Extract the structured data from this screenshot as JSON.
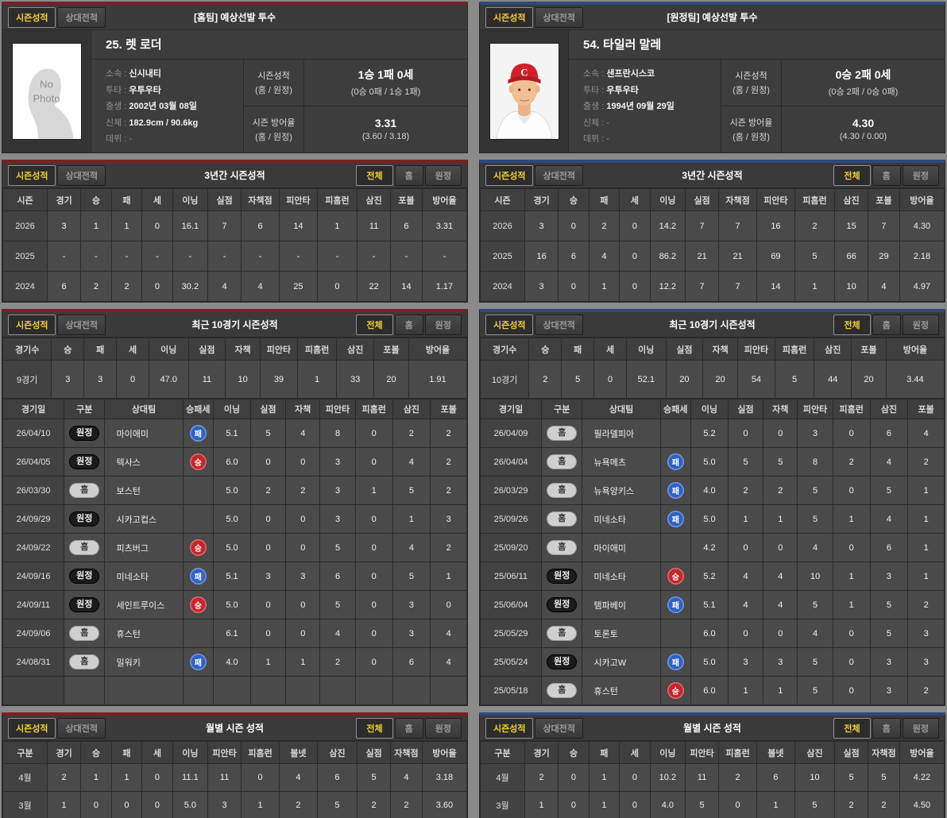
{
  "colors": {
    "home_accent": "#7d1f1f",
    "away_accent": "#2c4b7d",
    "active_tab_text": "#f3d031",
    "win_badge": "#c8252c",
    "loss_badge": "#2f62c9",
    "home_badge_bg": "#cfcfcf",
    "away_badge_bg": "#1b1b1b"
  },
  "shared": {
    "tabs": {
      "season": "시즌성적",
      "matchup": "상대전적"
    },
    "filters": {
      "all": "전체",
      "home": "홈",
      "away": "원정"
    },
    "separator": " : "
  },
  "panels": [
    {
      "side": "home",
      "header": {
        "title": "[홈팀] 예상선발 투수",
        "player_name": "25. 렛 로더",
        "photo": "silhouette",
        "photo_placeholder": "No\nPhoto",
        "info": [
          {
            "label": "소속",
            "value": "신시내티",
            "dim": false
          },
          {
            "label": "투타",
            "value": "우투우타",
            "dim": false
          },
          {
            "label": "출생",
            "value": "2002년 03월 08일",
            "dim": false
          },
          {
            "label": "신체",
            "value": "182.9cm / 90.6kg",
            "dim": false
          },
          {
            "label": "데뷔",
            "value": "-",
            "dim": true
          }
        ],
        "stats": [
          {
            "label": "시즌성적",
            "sublabel": "(홈 / 원정)",
            "value": "1승 1패 0세",
            "subvalue": "(0승 0패 / 1승 1패)"
          },
          {
            "label": "시즌 방어율",
            "sublabel": "(홈 / 원정)",
            "value": "3.31",
            "subvalue": "(3.60 / 3.18)"
          }
        ]
      },
      "three_year": {
        "title": "3년간 시즌성적",
        "columns": [
          "시즌",
          "경기",
          "승",
          "패",
          "세",
          "이닝",
          "실점",
          "자책점",
          "피안타",
          "피홈런",
          "삼진",
          "포볼",
          "방어율"
        ],
        "rows": [
          [
            "2026",
            "3",
            "1",
            "1",
            "0",
            "16.1",
            "7",
            "6",
            "14",
            "1",
            "11",
            "6",
            "3.31"
          ],
          [
            "2025",
            "-",
            "-",
            "-",
            "-",
            "-",
            "-",
            "-",
            "-",
            "-",
            "-",
            "-",
            "-"
          ],
          [
            "2024",
            "6",
            "2",
            "2",
            "0",
            "30.2",
            "4",
            "4",
            "25",
            "0",
            "22",
            "14",
            "1.17"
          ]
        ]
      },
      "recent": {
        "title": "최근 10경기 시즌성적",
        "summary_columns": [
          "경기수",
          "승",
          "패",
          "세",
          "이닝",
          "실점",
          "자책",
          "피안타",
          "피홈런",
          "삼진",
          "포볼",
          "방어율"
        ],
        "summary_row": [
          "9경기",
          "3",
          "3",
          "0",
          "47.0",
          "11",
          "10",
          "39",
          "1",
          "33",
          "20",
          "1.91"
        ],
        "game_columns": [
          "경기일",
          "구분",
          "상대팀",
          "승패세",
          "이닝",
          "실점",
          "자책",
          "피안타",
          "피홈런",
          "삼진",
          "포볼"
        ],
        "games": [
          {
            "date": "26/04/10",
            "loc": "원정",
            "opp": "마이애미",
            "result": "패",
            "stats": [
              "5.1",
              "5",
              "4",
              "8",
              "0",
              "2",
              "2"
            ]
          },
          {
            "date": "26/04/05",
            "loc": "원정",
            "opp": "텍사스",
            "result": "승",
            "stats": [
              "6.0",
              "0",
              "0",
              "3",
              "0",
              "4",
              "2"
            ]
          },
          {
            "date": "26/03/30",
            "loc": "홈",
            "opp": "보스턴",
            "result": "",
            "stats": [
              "5.0",
              "2",
              "2",
              "3",
              "1",
              "5",
              "2"
            ]
          },
          {
            "date": "24/09/29",
            "loc": "원정",
            "opp": "시카고컵스",
            "result": "",
            "stats": [
              "5.0",
              "0",
              "0",
              "3",
              "0",
              "1",
              "3"
            ]
          },
          {
            "date": "24/09/22",
            "loc": "홈",
            "opp": "피츠버그",
            "result": "승",
            "stats": [
              "5.0",
              "0",
              "0",
              "5",
              "0",
              "4",
              "2"
            ]
          },
          {
            "date": "24/09/16",
            "loc": "원정",
            "opp": "미네소타",
            "result": "패",
            "stats": [
              "5.1",
              "3",
              "3",
              "6",
              "0",
              "5",
              "1"
            ]
          },
          {
            "date": "24/09/11",
            "loc": "원정",
            "opp": "세인트루이스",
            "result": "승",
            "stats": [
              "5.0",
              "0",
              "0",
              "5",
              "0",
              "3",
              "0"
            ]
          },
          {
            "date": "24/09/06",
            "loc": "홈",
            "opp": "휴스턴",
            "result": "",
            "stats": [
              "6.1",
              "0",
              "0",
              "4",
              "0",
              "3",
              "4"
            ]
          },
          {
            "date": "24/08/31",
            "loc": "홈",
            "opp": "밀워키",
            "result": "패",
            "stats": [
              "4.0",
              "1",
              "1",
              "2",
              "0",
              "6",
              "4"
            ]
          },
          {
            "date": "",
            "loc": "",
            "opp": "",
            "result": "",
            "stats": [
              "",
              "",
              "",
              "",
              "",
              "",
              ""
            ]
          }
        ]
      },
      "monthly": {
        "title": "월별 시즌 성적",
        "columns": [
          "구분",
          "경기",
          "승",
          "패",
          "세",
          "이닝",
          "피안타",
          "피홈런",
          "볼넷",
          "삼진",
          "실점",
          "자책점",
          "방어율"
        ],
        "rows": [
          [
            "4월",
            "2",
            "1",
            "1",
            "0",
            "11.1",
            "11",
            "0",
            "4",
            "6",
            "5",
            "4",
            "3.18"
          ],
          [
            "3월",
            "1",
            "0",
            "0",
            "0",
            "5.0",
            "3",
            "1",
            "2",
            "5",
            "2",
            "2",
            "3.60"
          ]
        ]
      }
    },
    {
      "side": "away",
      "header": {
        "title": "[원정팀] 예상선발 투수",
        "player_name": "54. 타일러 말레",
        "photo": "portrait",
        "photo_placeholder": "",
        "info": [
          {
            "label": "소속",
            "value": "샌프란시스코",
            "dim": false
          },
          {
            "label": "투타",
            "value": "우투우타",
            "dim": false
          },
          {
            "label": "출생",
            "value": "1994년 09월 29일",
            "dim": false
          },
          {
            "label": "신체",
            "value": "-",
            "dim": true
          },
          {
            "label": "데뷔",
            "value": "-",
            "dim": true
          }
        ],
        "stats": [
          {
            "label": "시즌성적",
            "sublabel": "(홈 / 원정)",
            "value": "0승 2패 0세",
            "subvalue": "(0승 2패 / 0승 0패)"
          },
          {
            "label": "시즌 방어율",
            "sublabel": "(홈 / 원정)",
            "value": "4.30",
            "subvalue": "(4.30 / 0.00)"
          }
        ]
      },
      "three_year": {
        "title": "3년간 시즌성적",
        "columns": [
          "시즌",
          "경기",
          "승",
          "패",
          "세",
          "이닝",
          "실점",
          "자책점",
          "피안타",
          "피홈런",
          "삼진",
          "포볼",
          "방어율"
        ],
        "rows": [
          [
            "2026",
            "3",
            "0",
            "2",
            "0",
            "14.2",
            "7",
            "7",
            "16",
            "2",
            "15",
            "7",
            "4.30"
          ],
          [
            "2025",
            "16",
            "6",
            "4",
            "0",
            "86.2",
            "21",
            "21",
            "69",
            "5",
            "66",
            "29",
            "2.18"
          ],
          [
            "2024",
            "3",
            "0",
            "1",
            "0",
            "12.2",
            "7",
            "7",
            "14",
            "1",
            "10",
            "4",
            "4.97"
          ]
        ]
      },
      "recent": {
        "title": "최근 10경기 시즌성적",
        "summary_columns": [
          "경기수",
          "승",
          "패",
          "세",
          "이닝",
          "실점",
          "자책",
          "피안타",
          "피홈런",
          "삼진",
          "포볼",
          "방어율"
        ],
        "summary_row": [
          "10경기",
          "2",
          "5",
          "0",
          "52.1",
          "20",
          "20",
          "54",
          "5",
          "44",
          "20",
          "3.44"
        ],
        "game_columns": [
          "경기일",
          "구분",
          "상대팀",
          "승패세",
          "이닝",
          "실점",
          "자책",
          "피안타",
          "피홈런",
          "삼진",
          "포볼"
        ],
        "games": [
          {
            "date": "26/04/09",
            "loc": "홈",
            "opp": "필라델피아",
            "result": "",
            "stats": [
              "5.2",
              "0",
              "0",
              "3",
              "0",
              "6",
              "4"
            ]
          },
          {
            "date": "26/04/04",
            "loc": "홈",
            "opp": "뉴욕메츠",
            "result": "패",
            "stats": [
              "5.0",
              "5",
              "5",
              "8",
              "2",
              "4",
              "2"
            ]
          },
          {
            "date": "26/03/29",
            "loc": "홈",
            "opp": "뉴욕양키스",
            "result": "패",
            "stats": [
              "4.0",
              "2",
              "2",
              "5",
              "0",
              "5",
              "1"
            ]
          },
          {
            "date": "25/09/26",
            "loc": "홈",
            "opp": "미네소타",
            "result": "패",
            "stats": [
              "5.0",
              "1",
              "1",
              "5",
              "1",
              "4",
              "1"
            ]
          },
          {
            "date": "25/09/20",
            "loc": "홈",
            "opp": "마이애미",
            "result": "",
            "stats": [
              "4.2",
              "0",
              "0",
              "4",
              "0",
              "6",
              "1"
            ]
          },
          {
            "date": "25/06/11",
            "loc": "원정",
            "opp": "미네소타",
            "result": "승",
            "stats": [
              "5.2",
              "4",
              "4",
              "10",
              "1",
              "3",
              "1"
            ]
          },
          {
            "date": "25/06/04",
            "loc": "원정",
            "opp": "탬파베이",
            "result": "패",
            "stats": [
              "5.1",
              "4",
              "4",
              "5",
              "1",
              "5",
              "2"
            ]
          },
          {
            "date": "25/05/29",
            "loc": "홈",
            "opp": "토론토",
            "result": "",
            "stats": [
              "6.0",
              "0",
              "0",
              "4",
              "0",
              "5",
              "3"
            ]
          },
          {
            "date": "25/05/24",
            "loc": "원정",
            "opp": "시카고W",
            "result": "패",
            "stats": [
              "5.0",
              "3",
              "3",
              "5",
              "0",
              "3",
              "3"
            ]
          },
          {
            "date": "25/05/18",
            "loc": "홈",
            "opp": "휴스턴",
            "result": "승",
            "stats": [
              "6.0",
              "1",
              "1",
              "5",
              "0",
              "3",
              "2"
            ]
          }
        ]
      },
      "monthly": {
        "title": "월별 시즌 성적",
        "columns": [
          "구분",
          "경기",
          "승",
          "패",
          "세",
          "이닝",
          "피안타",
          "피홈런",
          "볼넷",
          "삼진",
          "실점",
          "자책점",
          "방어율"
        ],
        "rows": [
          [
            "4월",
            "2",
            "0",
            "1",
            "0",
            "10.2",
            "11",
            "2",
            "6",
            "10",
            "5",
            "5",
            "4.22"
          ],
          [
            "3월",
            "1",
            "0",
            "1",
            "0",
            "4.0",
            "5",
            "0",
            "1",
            "5",
            "2",
            "2",
            "4.50"
          ]
        ]
      }
    }
  ]
}
